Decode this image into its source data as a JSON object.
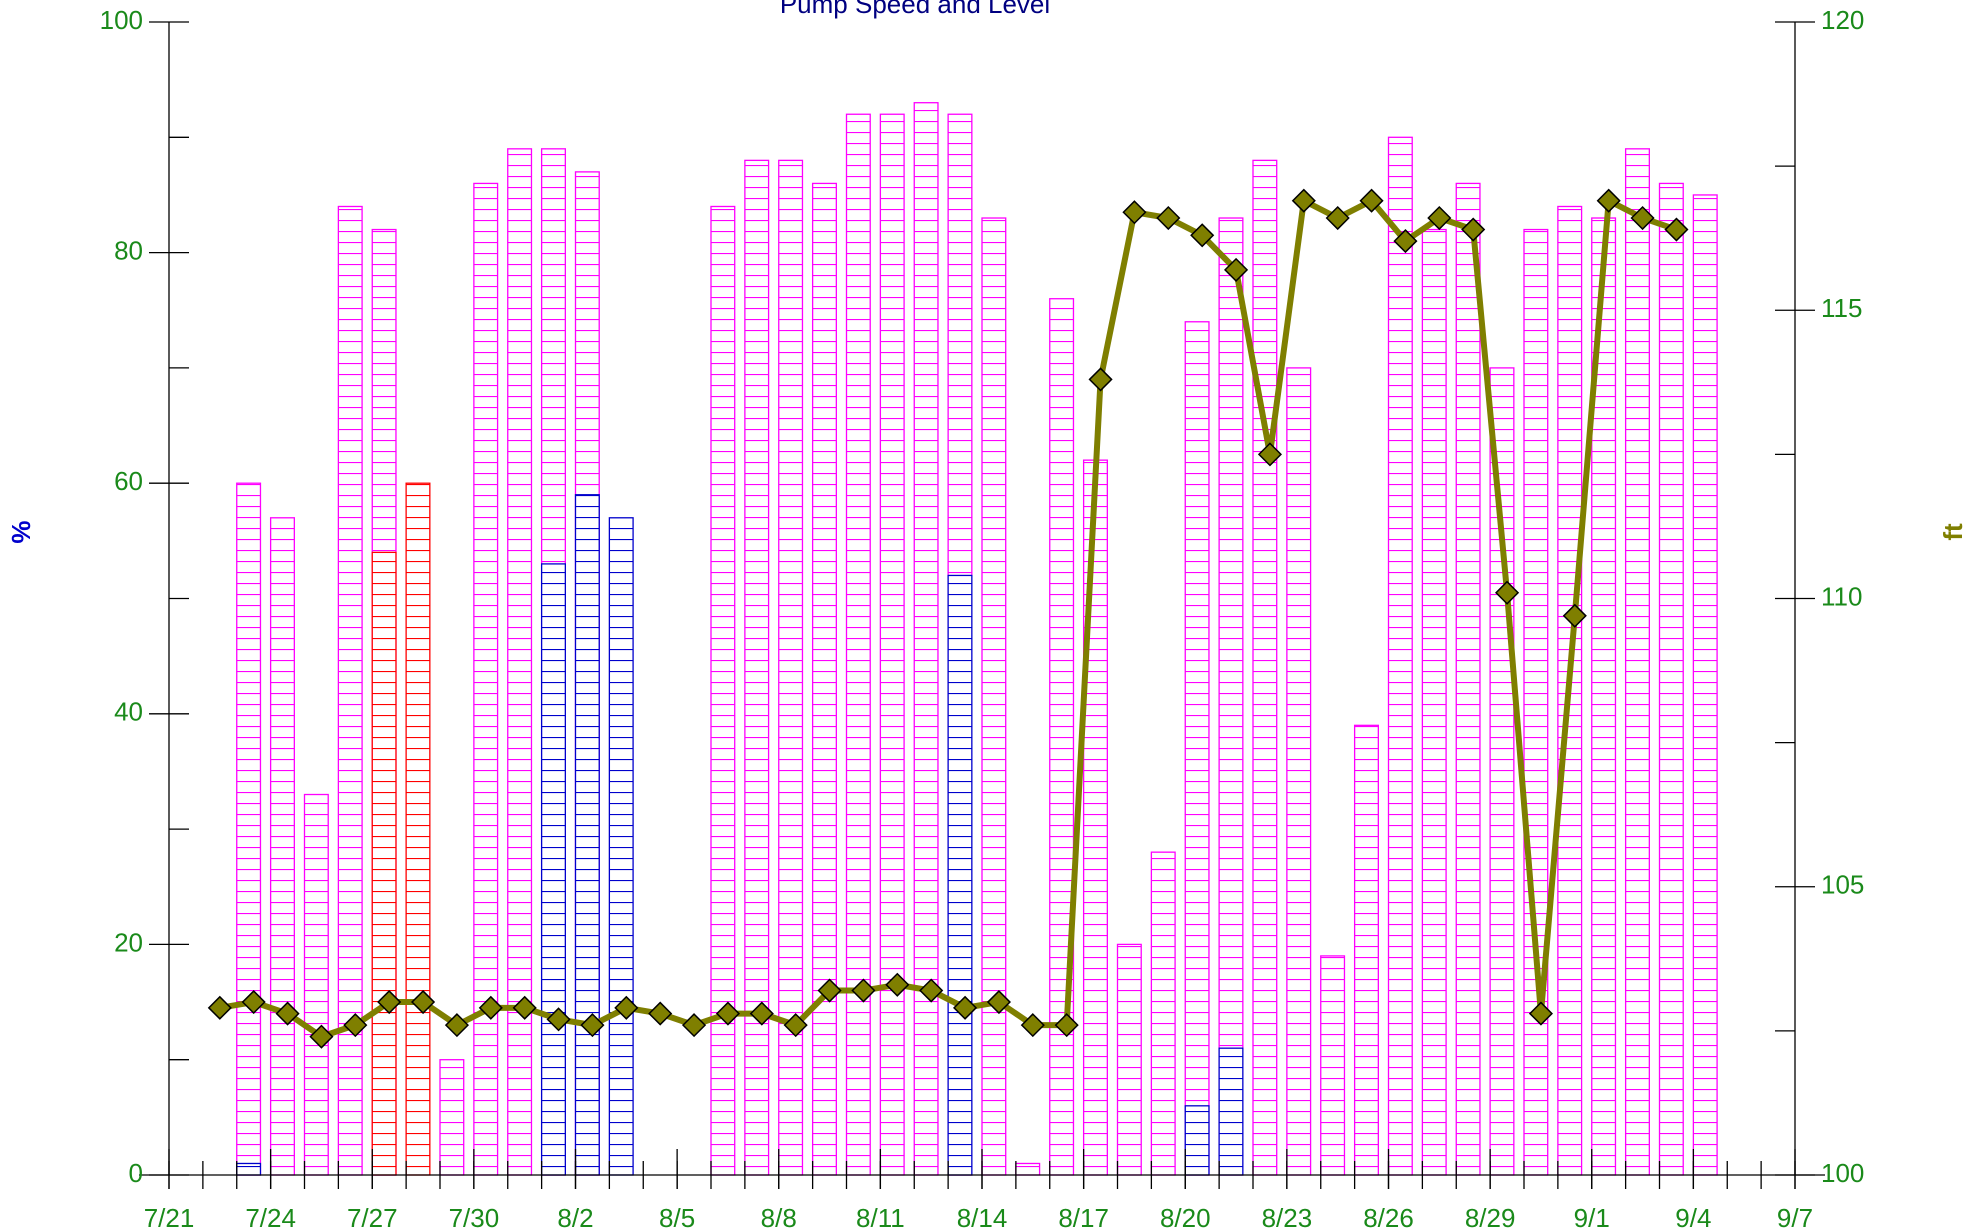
{
  "chart_data": [
    {
      "type": "bar",
      "title": "Pump Speed and Level",
      "ylabel": "%",
      "ylabel_color": "#0000cc",
      "xlim": [
        "7/21",
        "9/7"
      ],
      "xticks": [
        "7/21",
        "7/24",
        "7/27",
        "7/30",
        "8/2",
        "8/5",
        "8/8",
        "8/11",
        "8/14",
        "8/17",
        "8/20",
        "8/23",
        "8/26",
        "8/29",
        "9/1",
        "9/4",
        "9/7"
      ],
      "ylim": [
        0,
        100
      ],
      "yticks": [
        0,
        20,
        40,
        60,
        80,
        100
      ],
      "x": [
        "7/23",
        "7/24",
        "7/25",
        "7/26",
        "7/27",
        "7/28",
        "7/29",
        "7/30",
        "7/31",
        "8/1",
        "8/2",
        "8/3",
        "8/4",
        "8/5",
        "8/6",
        "8/7",
        "8/8",
        "8/9",
        "8/10",
        "8/11",
        "8/12",
        "8/13",
        "8/14",
        "8/15",
        "8/16",
        "8/17",
        "8/18",
        "8/19",
        "8/20",
        "8/21",
        "8/22",
        "8/23",
        "8/24",
        "8/25",
        "8/26",
        "8/27",
        "8/28",
        "8/29",
        "8/30",
        "8/31",
        "9/1",
        "9/2",
        "9/3",
        "9/4"
      ],
      "series": [
        {
          "color": "#ff00ff",
          "values": [
            60,
            57,
            33,
            84,
            82,
            null,
            10,
            86,
            89,
            89,
            87,
            null,
            null,
            null,
            84,
            88,
            88,
            86,
            92,
            92,
            93,
            92,
            83,
            1,
            76,
            62,
            20,
            28,
            74,
            83,
            88,
            70,
            19,
            39,
            90,
            82,
            86,
            70,
            82,
            84,
            83,
            89,
            86,
            85
          ]
        },
        {
          "color": "#0000cc",
          "values": [
            1,
            null,
            null,
            null,
            null,
            null,
            null,
            null,
            null,
            53,
            59,
            57,
            null,
            null,
            null,
            null,
            null,
            null,
            null,
            null,
            null,
            52,
            null,
            null,
            null,
            null,
            null,
            null,
            6,
            11,
            null,
            null,
            null,
            null,
            null,
            null,
            null,
            null,
            null,
            null,
            null,
            null,
            null,
            null
          ]
        },
        {
          "color": "#ff0000",
          "values": [
            null,
            null,
            null,
            null,
            54,
            60,
            null,
            null,
            null,
            null,
            null,
            null,
            null,
            null,
            null,
            null,
            null,
            null,
            null,
            null,
            null,
            null,
            null,
            null,
            null,
            null,
            null,
            null,
            null,
            null,
            null,
            null,
            null,
            null,
            null,
            null,
            null,
            null,
            null,
            null,
            null,
            null,
            null,
            null
          ]
        }
      ]
    },
    {
      "type": "line",
      "ylabel": "ft",
      "ylabel_color": "#7f7f00",
      "ylim": [
        100,
        120
      ],
      "yticks": [
        100,
        105,
        110,
        115,
        120
      ],
      "x": [
        "7/22",
        "7/23",
        "7/24",
        "7/25",
        "7/26",
        "7/27",
        "7/28",
        "7/29",
        "7/30",
        "7/31",
        "8/1",
        "8/2",
        "8/3",
        "8/4",
        "8/5",
        "8/6",
        "8/7",
        "8/8",
        "8/9",
        "8/10",
        "8/11",
        "8/12",
        "8/13",
        "8/14",
        "8/15",
        "8/16",
        "8/17",
        "8/18",
        "8/19",
        "8/20",
        "8/21",
        "8/22",
        "8/23",
        "8/24",
        "8/25",
        "8/26",
        "8/27",
        "8/28",
        "8/29",
        "8/30",
        "8/31",
        "9/1",
        "9/2",
        "9/3"
      ],
      "series": [
        {
          "color": "#7f7f00",
          "values": [
            102.9,
            103.0,
            102.8,
            102.4,
            102.6,
            103.0,
            103.0,
            102.6,
            102.9,
            102.9,
            102.7,
            102.6,
            102.9,
            102.8,
            102.6,
            102.8,
            102.8,
            102.6,
            103.2,
            103.2,
            103.3,
            103.2,
            102.9,
            103.0,
            102.6,
            102.6,
            113.8,
            116.7,
            116.6,
            116.3,
            115.7,
            112.5,
            116.9,
            116.6,
            116.9,
            116.2,
            116.6,
            116.4,
            110.1,
            102.8,
            109.7,
            116.9,
            116.6,
            116.4
          ]
        }
      ]
    }
  ]
}
